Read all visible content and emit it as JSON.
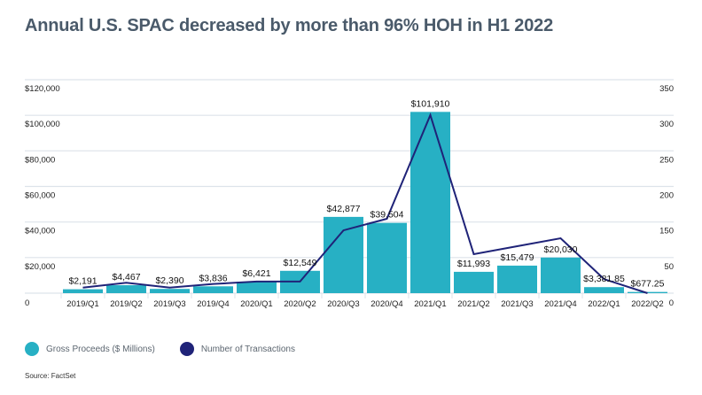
{
  "title": "Annual U.S. SPAC decreased by more than 96% HOH in H1 2022",
  "source": "Source: FactSet",
  "colors": {
    "bars": "#27b0c4",
    "line": "#1f2378",
    "grid": "#dde3ea"
  },
  "chart_data": {
    "type": "bar",
    "title": "Annual U.S. SPAC decreased by more than 96% HOH in H1 2022",
    "categories": [
      "2019/Q1",
      "2019/Q2",
      "2019/Q3",
      "2019/Q4",
      "2020/Q1",
      "2020/Q2",
      "2020/Q3",
      "2020/Q4",
      "2021/Q1",
      "2021/Q2",
      "2021/Q3",
      "2021/Q4",
      "2022/Q1",
      "2022/Q2"
    ],
    "series": [
      {
        "name": "Gross Proceeds ($ Millions)",
        "type": "bar",
        "axis": "left",
        "values": [
          2191,
          4467,
          2390,
          3836,
          6421,
          12549,
          42877,
          39504,
          101910,
          11993,
          15479,
          20030,
          3381.85,
          677.25
        ],
        "labels": [
          "$2,191",
          "$4,467",
          "$2,390",
          "$3,836",
          "$6,421",
          "$12,549",
          "$42,877",
          "$39,504",
          "$101,910",
          "$11,993",
          "$15,479",
          "$20,030",
          "$3,381.85",
          "$677.25"
        ]
      },
      {
        "name": "Number of Transactions",
        "type": "line",
        "axis": "right",
        "values": [
          9,
          17,
          9,
          15,
          19,
          19,
          103,
          122,
          292,
          64,
          77,
          90,
          23,
          0
        ]
      }
    ],
    "left_axis": {
      "ylim": [
        0,
        120000
      ],
      "ticks": [
        0,
        20000,
        40000,
        60000,
        80000,
        100000,
        120000
      ],
      "tick_labels": [
        "0",
        "$20,000",
        "$40,000",
        "$60,000",
        "$80,000",
        "$100,000",
        "$120,000"
      ]
    },
    "right_axis": {
      "ylim": [
        0,
        350
      ],
      "tick_labels": [
        "0",
        "50",
        "150",
        "200",
        "250",
        "300",
        "350"
      ]
    },
    "xlabel": "",
    "ylabel": "",
    "grid": true,
    "legend": {
      "position": "bottom-left",
      "entries": [
        "Gross Proceeds ($ Millions)",
        "Number of Transactions"
      ]
    }
  }
}
